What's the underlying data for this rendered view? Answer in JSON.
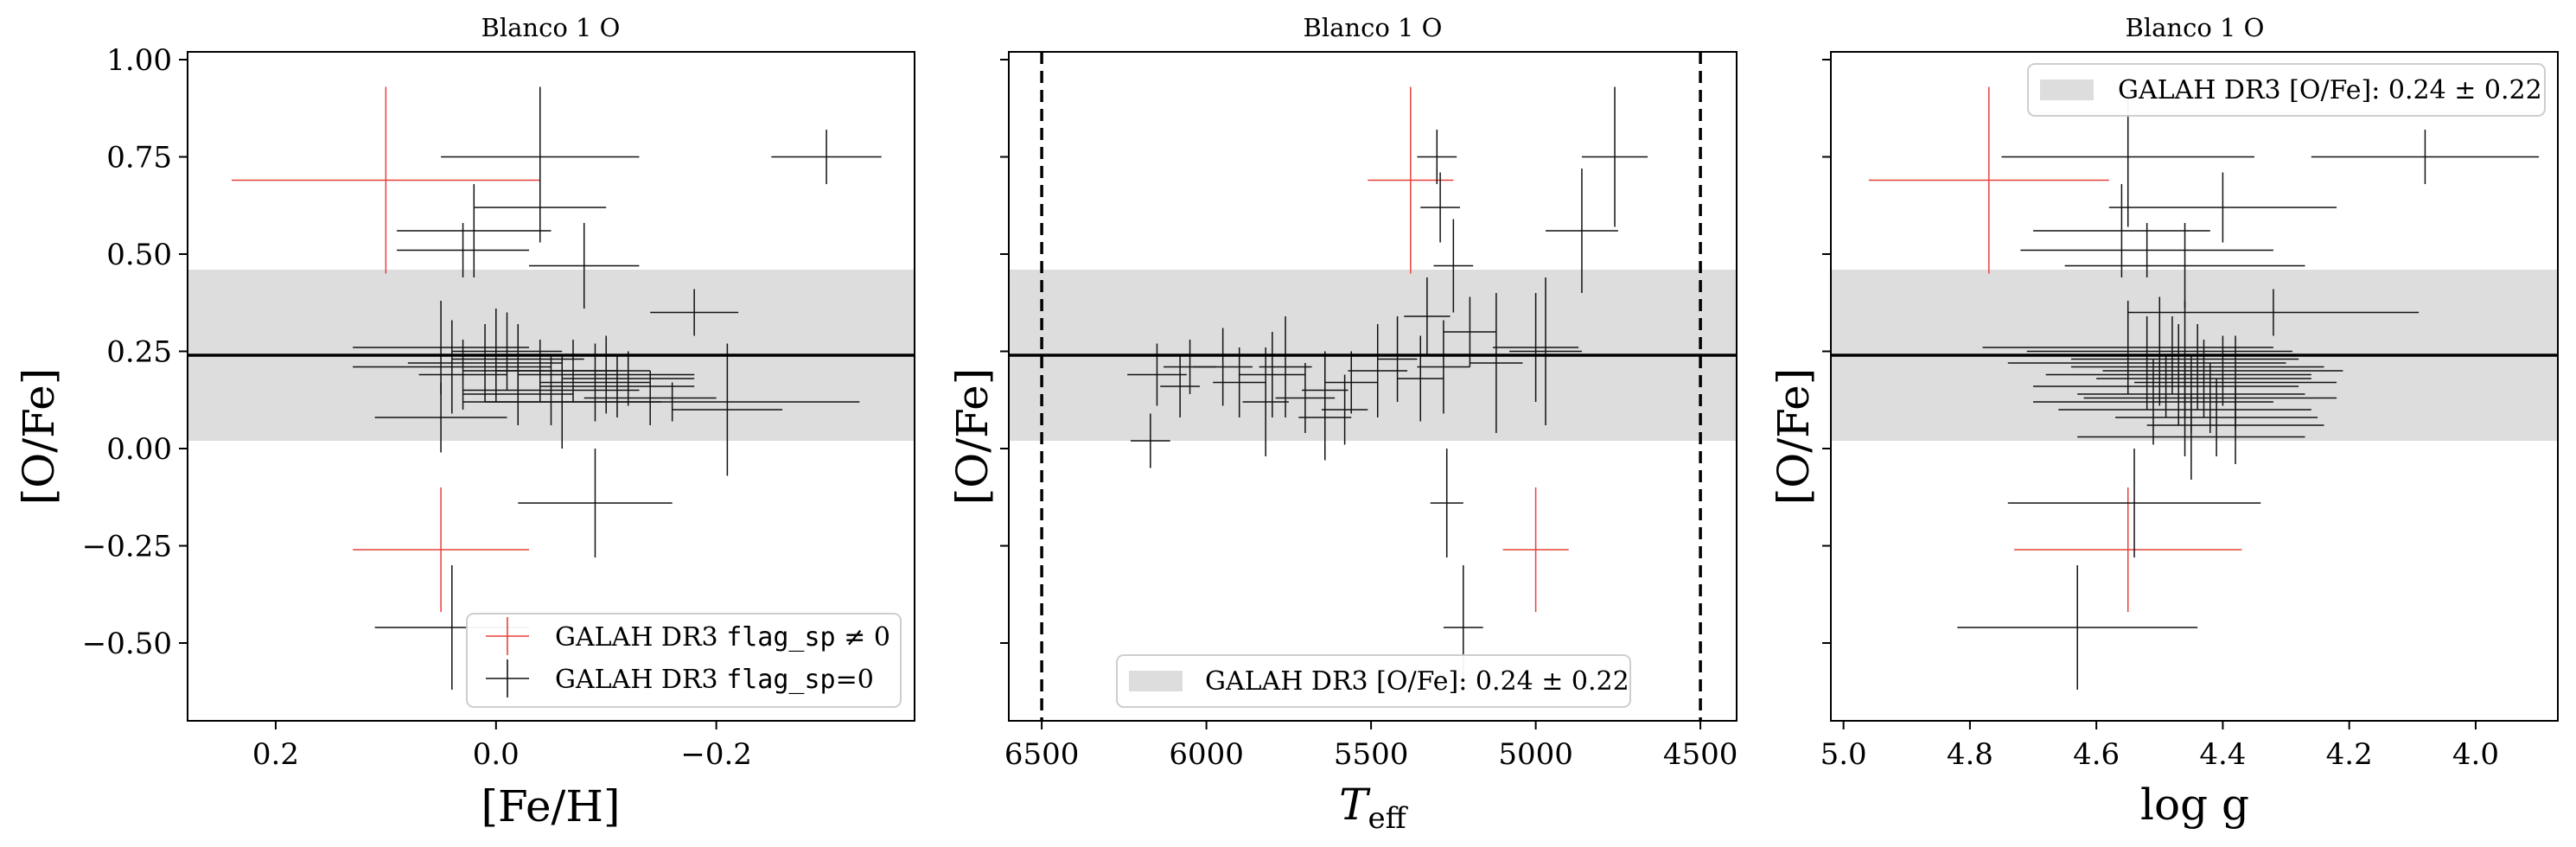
{
  "chart_data": [
    {
      "type": "scatter",
      "title": "Blanco 1 O",
      "xlabel": "[Fe/H]",
      "ylabel": "[O/Fe]",
      "xlim": [
        0.28,
        -0.38
      ],
      "ylim": [
        -0.7,
        1.02
      ],
      "xticks": [
        0.2,
        0.0,
        -0.2
      ],
      "xtick_labels": [
        "0.2",
        "0.0",
        "−0.2"
      ],
      "yticks": [
        1.0,
        0.75,
        0.5,
        0.25,
        0.0,
        -0.25,
        -0.5
      ],
      "ytick_labels": [
        "1.00",
        "0.75",
        "0.50",
        "0.25",
        "0.00",
        "−0.25",
        "−0.50"
      ],
      "show_ytick_labels": true,
      "band": {
        "center": 0.24,
        "half_width": 0.22,
        "color": "#dddddd"
      },
      "hline": 0.24,
      "vlines": [],
      "series": [
        {
          "name": "GALAH DR3 flag_sp ≠ 0",
          "color": "#e8403a",
          "points": [
            {
              "x": 0.1,
              "y": 0.69,
              "xerr": 0.14,
              "yerr": 0.24
            },
            {
              "x": 0.05,
              "y": -0.26,
              "xerr": 0.08,
              "yerr": 0.16
            }
          ]
        },
        {
          "name": "GALAH DR3 flag_sp=0",
          "color": "#111111",
          "points": [
            {
              "x": -0.3,
              "y": 0.75,
              "xerr": 0.05,
              "yerr": 0.07
            },
            {
              "x": -0.04,
              "y": 0.75,
              "xerr": 0.09,
              "yerr": 0.18
            },
            {
              "x": -0.04,
              "y": 0.62,
              "xerr": 0.06,
              "yerr": 0.09
            },
            {
              "x": 0.02,
              "y": 0.56,
              "xerr": 0.07,
              "yerr": 0.12
            },
            {
              "x": 0.03,
              "y": 0.51,
              "xerr": 0.06,
              "yerr": 0.07
            },
            {
              "x": -0.08,
              "y": 0.47,
              "xerr": 0.05,
              "yerr": 0.11
            },
            {
              "x": -0.18,
              "y": 0.35,
              "xerr": 0.04,
              "yerr": 0.06
            },
            {
              "x": 0.05,
              "y": 0.26,
              "xerr": 0.08,
              "yerr": 0.12
            },
            {
              "x": -0.01,
              "y": 0.25,
              "xerr": 0.05,
              "yerr": 0.1
            },
            {
              "x": 0.0,
              "y": 0.24,
              "xerr": 0.06,
              "yerr": 0.12
            },
            {
              "x": -0.02,
              "y": 0.23,
              "xerr": 0.06,
              "yerr": 0.09
            },
            {
              "x": 0.01,
              "y": 0.22,
              "xerr": 0.07,
              "yerr": 0.1
            },
            {
              "x": 0.04,
              "y": 0.21,
              "xerr": 0.09,
              "yerr": 0.12
            },
            {
              "x": -0.04,
              "y": 0.2,
              "xerr": 0.07,
              "yerr": 0.08
            },
            {
              "x": 0.03,
              "y": 0.19,
              "xerr": 0.04,
              "yerr": 0.09
            },
            {
              "x": -0.07,
              "y": 0.2,
              "xerr": 0.07,
              "yerr": 0.08
            },
            {
              "x": -0.1,
              "y": 0.19,
              "xerr": 0.08,
              "yerr": 0.1
            },
            {
              "x": -0.12,
              "y": 0.18,
              "xerr": 0.06,
              "yerr": 0.07
            },
            {
              "x": -0.09,
              "y": 0.17,
              "xerr": 0.05,
              "yerr": 0.1
            },
            {
              "x": -0.11,
              "y": 0.16,
              "xerr": 0.07,
              "yerr": 0.08
            },
            {
              "x": -0.05,
              "y": 0.15,
              "xerr": 0.08,
              "yerr": 0.09
            },
            {
              "x": -0.02,
              "y": 0.14,
              "xerr": 0.05,
              "yerr": 0.08
            },
            {
              "x": -0.14,
              "y": 0.13,
              "xerr": 0.06,
              "yerr": 0.07
            },
            {
              "x": -0.06,
              "y": 0.12,
              "xerr": 0.09,
              "yerr": 0.12
            },
            {
              "x": -0.16,
              "y": 0.12,
              "xerr": 0.17,
              "yerr": 0.05
            },
            {
              "x": -0.21,
              "y": 0.1,
              "xerr": 0.05,
              "yerr": 0.17
            },
            {
              "x": 0.05,
              "y": 0.08,
              "xerr": 0.06,
              "yerr": 0.09
            },
            {
              "x": -0.09,
              "y": -0.14,
              "xerr": 0.07,
              "yerr": 0.14
            },
            {
              "x": 0.04,
              "y": -0.46,
              "xerr": 0.07,
              "yerr": 0.16
            }
          ]
        }
      ],
      "legend": {
        "placement": "lower right",
        "entries": [
          {
            "series": 0,
            "label": "GALAH DR3 ",
            "code": "flag_sp",
            "suffix": " ≠ 0"
          },
          {
            "series": 1,
            "label": "GALAH DR3 ",
            "code": "flag_sp",
            "suffix": "=0"
          }
        ]
      }
    },
    {
      "type": "scatter",
      "title": "Blanco 1 O",
      "xlabel": "T",
      "xlabel_sub": "eff",
      "ylabel": "[O/Fe]",
      "xlim": [
        6600,
        4390
      ],
      "ylim": [
        -0.7,
        1.02
      ],
      "xticks": [
        6500,
        6000,
        5500,
        5000,
        4500
      ],
      "xtick_labels": [
        "6500",
        "6000",
        "5500",
        "5000",
        "4500"
      ],
      "yticks": [
        1.0,
        0.75,
        0.5,
        0.25,
        0.0,
        -0.25,
        -0.5
      ],
      "show_ytick_labels": false,
      "band": {
        "center": 0.24,
        "half_width": 0.22,
        "color": "#dddddd"
      },
      "hline": 0.24,
      "vlines": [
        6500,
        4500
      ],
      "series": [
        {
          "name": "GALAH DR3 flag_sp ≠ 0",
          "color": "#e8403a",
          "points": [
            {
              "x": 5380,
              "y": 0.69,
              "xerr": 130,
              "yerr": 0.24
            },
            {
              "x": 5000,
              "y": -0.26,
              "xerr": 100,
              "yerr": 0.16
            }
          ]
        },
        {
          "name": "GALAH DR3 flag_sp=0",
          "color": "#111111",
          "points": [
            {
              "x": 4760,
              "y": 0.75,
              "xerr": 100,
              "yerr": 0.18
            },
            {
              "x": 4860,
              "y": 0.56,
              "xerr": 110,
              "yerr": 0.16
            },
            {
              "x": 5300,
              "y": 0.75,
              "xerr": 60,
              "yerr": 0.07
            },
            {
              "x": 5290,
              "y": 0.62,
              "xerr": 60,
              "yerr": 0.09
            },
            {
              "x": 5250,
              "y": 0.47,
              "xerr": 60,
              "yerr": 0.12
            },
            {
              "x": 5330,
              "y": 0.34,
              "xerr": 70,
              "yerr": 0.1
            },
            {
              "x": 5200,
              "y": 0.3,
              "xerr": 80,
              "yerr": 0.09
            },
            {
              "x": 5000,
              "y": 0.26,
              "xerr": 130,
              "yerr": 0.14
            },
            {
              "x": 4970,
              "y": 0.25,
              "xerr": 110,
              "yerr": 0.19
            },
            {
              "x": 5120,
              "y": 0.22,
              "xerr": 80,
              "yerr": 0.18
            },
            {
              "x": 5280,
              "y": 0.21,
              "xerr": 80,
              "yerr": 0.12
            },
            {
              "x": 5350,
              "y": 0.18,
              "xerr": 70,
              "yerr": 0.11
            },
            {
              "x": 5480,
              "y": 0.2,
              "xerr": 90,
              "yerr": 0.12
            },
            {
              "x": 5560,
              "y": 0.17,
              "xerr": 80,
              "yerr": 0.08
            },
            {
              "x": 5640,
              "y": 0.15,
              "xerr": 70,
              "yerr": 0.1
            },
            {
              "x": 5700,
              "y": 0.13,
              "xerr": 90,
              "yerr": 0.09
            },
            {
              "x": 5760,
              "y": 0.21,
              "xerr": 80,
              "yerr": 0.13
            },
            {
              "x": 5800,
              "y": 0.19,
              "xerr": 100,
              "yerr": 0.11
            },
            {
              "x": 5820,
              "y": 0.12,
              "xerr": 70,
              "yerr": 0.14
            },
            {
              "x": 5900,
              "y": 0.17,
              "xerr": 80,
              "yerr": 0.09
            },
            {
              "x": 5950,
              "y": 0.21,
              "xerr": 90,
              "yerr": 0.1
            },
            {
              "x": 6050,
              "y": 0.21,
              "xerr": 80,
              "yerr": 0.07
            },
            {
              "x": 6080,
              "y": 0.16,
              "xerr": 60,
              "yerr": 0.08
            },
            {
              "x": 6150,
              "y": 0.19,
              "xerr": 90,
              "yerr": 0.08
            },
            {
              "x": 5640,
              "y": 0.08,
              "xerr": 80,
              "yerr": 0.11
            },
            {
              "x": 5580,
              "y": 0.1,
              "xerr": 70,
              "yerr": 0.09
            },
            {
              "x": 5420,
              "y": 0.23,
              "xerr": 60,
              "yerr": 0.11
            },
            {
              "x": 6170,
              "y": 0.02,
              "xerr": 60,
              "yerr": 0.07
            },
            {
              "x": 5270,
              "y": -0.14,
              "xerr": 50,
              "yerr": 0.14
            },
            {
              "x": 5220,
              "y": -0.46,
              "xerr": 60,
              "yerr": 0.16
            }
          ]
        }
      ],
      "legend": {
        "placement": "lower center",
        "band_entry": "GALAH DR3 [O/Fe]: 0.24 ± 0.22"
      }
    },
    {
      "type": "scatter",
      "title": "Blanco 1 O",
      "xlabel": "log g",
      "ylabel": "[O/Fe]",
      "xlim": [
        5.02,
        3.87
      ],
      "ylim": [
        -0.7,
        1.02
      ],
      "xticks": [
        5.0,
        4.8,
        4.6,
        4.4,
        4.2,
        4.0
      ],
      "xtick_labels": [
        "5.0",
        "4.8",
        "4.6",
        "4.4",
        "4.2",
        "4.0"
      ],
      "yticks": [
        1.0,
        0.75,
        0.5,
        0.25,
        0.0,
        -0.25,
        -0.5
      ],
      "show_ytick_labels": false,
      "band": {
        "center": 0.24,
        "half_width": 0.22,
        "color": "#dddddd"
      },
      "hline": 0.24,
      "vlines": [],
      "series": [
        {
          "name": "GALAH DR3 flag_sp ≠ 0",
          "color": "#e8403a",
          "points": [
            {
              "x": 4.77,
              "y": 0.69,
              "xerr": 0.19,
              "yerr": 0.24
            },
            {
              "x": 4.55,
              "y": -0.26,
              "xerr": 0.18,
              "yerr": 0.16
            }
          ]
        },
        {
          "name": "GALAH DR3 flag_sp=0",
          "color": "#111111",
          "points": [
            {
              "x": 4.08,
              "y": 0.75,
              "xerr": 0.18,
              "yerr": 0.07
            },
            {
              "x": 4.55,
              "y": 0.75,
              "xerr": 0.2,
              "yerr": 0.18
            },
            {
              "x": 4.4,
              "y": 0.62,
              "xerr": 0.18,
              "yerr": 0.09
            },
            {
              "x": 4.56,
              "y": 0.56,
              "xerr": 0.14,
              "yerr": 0.12
            },
            {
              "x": 4.52,
              "y": 0.51,
              "xerr": 0.2,
              "yerr": 0.07
            },
            {
              "x": 4.46,
              "y": 0.47,
              "xerr": 0.19,
              "yerr": 0.11
            },
            {
              "x": 4.32,
              "y": 0.35,
              "xerr": 0.23,
              "yerr": 0.06
            },
            {
              "x": 4.55,
              "y": 0.26,
              "xerr": 0.23,
              "yerr": 0.12
            },
            {
              "x": 4.5,
              "y": 0.25,
              "xerr": 0.21,
              "yerr": 0.14
            },
            {
              "x": 4.48,
              "y": 0.24,
              "xerr": 0.19,
              "yerr": 0.1
            },
            {
              "x": 4.46,
              "y": 0.23,
              "xerr": 0.18,
              "yerr": 0.15
            },
            {
              "x": 4.52,
              "y": 0.22,
              "xerr": 0.22,
              "yerr": 0.12
            },
            {
              "x": 4.44,
              "y": 0.21,
              "xerr": 0.2,
              "yerr": 0.11
            },
            {
              "x": 4.4,
              "y": 0.2,
              "xerr": 0.19,
              "yerr": 0.09
            },
            {
              "x": 4.47,
              "y": 0.19,
              "xerr": 0.21,
              "yerr": 0.13
            },
            {
              "x": 4.43,
              "y": 0.18,
              "xerr": 0.17,
              "yerr": 0.1
            },
            {
              "x": 4.38,
              "y": 0.17,
              "xerr": 0.16,
              "yerr": 0.12
            },
            {
              "x": 4.49,
              "y": 0.16,
              "xerr": 0.21,
              "yerr": 0.08
            },
            {
              "x": 4.45,
              "y": 0.14,
              "xerr": 0.18,
              "yerr": 0.1
            },
            {
              "x": 4.42,
              "y": 0.13,
              "xerr": 0.2,
              "yerr": 0.09
            },
            {
              "x": 4.51,
              "y": 0.12,
              "xerr": 0.19,
              "yerr": 0.11
            },
            {
              "x": 4.46,
              "y": 0.1,
              "xerr": 0.2,
              "yerr": 0.12
            },
            {
              "x": 4.41,
              "y": 0.08,
              "xerr": 0.16,
              "yerr": 0.1
            },
            {
              "x": 4.38,
              "y": 0.06,
              "xerr": 0.14,
              "yerr": 0.1
            },
            {
              "x": 4.45,
              "y": 0.03,
              "xerr": 0.18,
              "yerr": 0.11
            },
            {
              "x": 4.54,
              "y": -0.14,
              "xerr": 0.2,
              "yerr": 0.14
            },
            {
              "x": 4.63,
              "y": -0.46,
              "xerr": 0.19,
              "yerr": 0.16
            }
          ]
        }
      ],
      "legend": {
        "placement": "upper right",
        "band_entry": "GALAH DR3 [O/Fe]: 0.24 ± 0.22"
      }
    }
  ]
}
